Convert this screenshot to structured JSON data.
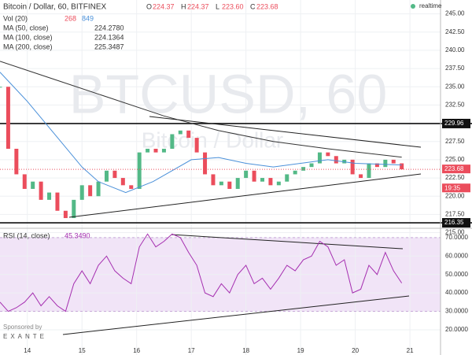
{
  "chart_data": {
    "type": "candlestick",
    "header": {
      "title": "Bitcoin / Dollar, 60, BITFINEX",
      "ohlc": [
        "O",
        "224.37",
        "H",
        "224.37",
        "L",
        "223.60",
        "C",
        "223.68"
      ],
      "status": "realtime"
    },
    "indicators": [
      {
        "name": "Vol (20)",
        "values": [
          "268",
          "849"
        ]
      },
      {
        "name": "MA (50, close)",
        "values": [
          "224.2780"
        ]
      },
      {
        "name": "MA (100, close)",
        "values": [
          "224.1364"
        ]
      },
      {
        "name": "MA (200, close)",
        "values": [
          "225.3487"
        ]
      }
    ],
    "watermark": [
      "BTCUSD, 60",
      "Bitcoin / Dollar"
    ],
    "sponsor": [
      "Sponsored by",
      "EXANTE"
    ],
    "xlim": [
      13.5,
      21.56
    ],
    "xticks": [
      14,
      15,
      16,
      17,
      18,
      19,
      20,
      21
    ],
    "ylim": [
      215.6,
      246.9
    ],
    "yticks": [
      {
        "value": 245,
        "label": "245.00"
      },
      {
        "value": 242.5,
        "label": "242.50"
      },
      {
        "value": 240,
        "label": "240.00"
      },
      {
        "value": 237.5,
        "label": "237.50"
      },
      {
        "value": 235,
        "label": "235.00"
      },
      {
        "value": 232.5,
        "label": "232.50"
      },
      {
        "value": 230,
        "label": "230.00"
      },
      {
        "value": 227.5,
        "label": "227.50"
      },
      {
        "value": 225,
        "label": "225.00"
      },
      {
        "value": 222.5,
        "label": "222.50"
      },
      {
        "value": 220,
        "label": "220.00"
      },
      {
        "value": 217.5,
        "label": "217.50"
      },
      {
        "value": 215,
        "label": "215.00"
      }
    ],
    "x": [
      13.5,
      13.65,
      13.8,
      13.95,
      14.1,
      14.25,
      14.4,
      14.55,
      14.7,
      14.85,
      15.0,
      15.15,
      15.3,
      15.45,
      15.6,
      15.75,
      15.9,
      16.05,
      16.2,
      16.35,
      16.5,
      16.65,
      16.8,
      16.95,
      17.1,
      17.25,
      17.4,
      17.55,
      17.7,
      17.85,
      18.0,
      18.15,
      18.3,
      18.45,
      18.6,
      18.75,
      18.9,
      19.05,
      19.2,
      19.35,
      19.5,
      19.65,
      19.8,
      19.95,
      20.1,
      20.25,
      20.4,
      20.55,
      20.7,
      20.85
    ],
    "close": [
      235.0,
      226.5,
      223.0,
      221.0,
      222.0,
      219.5,
      220.5,
      218.0,
      217.0,
      219.5,
      221.5,
      220.0,
      222.0,
      223.5,
      222.5,
      221.5,
      221.0,
      226.0,
      226.5,
      226.0,
      226.5,
      228.5,
      229.0,
      228.0,
      226.0,
      223.0,
      221.5,
      222.0,
      221.0,
      222.5,
      223.5,
      222.0,
      222.5,
      221.5,
      222.0,
      223.0,
      223.5,
      224.0,
      224.5,
      226.0,
      225.5,
      224.5,
      225.0,
      223.0,
      222.5,
      224.5,
      224.0,
      225.0,
      224.5,
      223.68
    ],
    "up_color": "#53b987",
    "down_color": "#eb4d5c",
    "lines": [
      {
        "name": "MA (50, close)",
        "color": "#4a90d9",
        "x": [
          13.5,
          14.0,
          14.5,
          15.0,
          15.3,
          15.8,
          16.3,
          17.0,
          17.5,
          18.0,
          18.5,
          19.0,
          19.5,
          20.0,
          20.85
        ],
        "values": [
          237.0,
          233.0,
          228.5,
          224.0,
          222.0,
          220.5,
          222.0,
          225.0,
          225.3,
          224.5,
          224.0,
          224.5,
          225.0,
          224.5,
          224.278
        ]
      },
      {
        "name": "MA (200, close)",
        "color": "#333333",
        "x": [
          13.5,
          14.5,
          15.5,
          16.5,
          17.5,
          18.5,
          19.5,
          20.85
        ],
        "values": [
          238.5,
          236.0,
          233.5,
          231.0,
          229.0,
          227.5,
          226.5,
          225.3487
        ]
      }
    ],
    "levels": [
      {
        "value": 229.96,
        "label": "229.96"
      },
      {
        "value": 216.35,
        "label": "216.35"
      }
    ],
    "price_labels": [
      {
        "value": 223.68,
        "label": "223.68",
        "color": "#eb4d5c"
      },
      {
        "value": 221.4,
        "label": "19:35",
        "color": "#eb4d5c"
      }
    ],
    "rsi": {
      "name": "RSI (14, close)",
      "value_label": "45.3490",
      "color": "#a52fb0",
      "ylim": [
        6.3,
        75.1
      ],
      "yticks": [
        {
          "value": 70,
          "label": "70.0000"
        },
        {
          "value": 60,
          "label": "60.0000"
        },
        {
          "value": 50,
          "label": "50.0000"
        },
        {
          "value": 40,
          "label": "40.0000"
        },
        {
          "value": 30,
          "label": "30.0000"
        },
        {
          "value": 20,
          "label": "20.0000"
        }
      ],
      "band": [
        30,
        70
      ],
      "values": [
        35,
        30,
        32,
        35,
        40,
        33,
        38,
        33,
        30,
        45,
        52,
        45,
        55,
        60,
        52,
        48,
        45,
        65,
        72,
        65,
        68,
        72,
        70,
        62,
        55,
        40,
        38,
        45,
        40,
        50,
        55,
        45,
        48,
        42,
        48,
        55,
        52,
        58,
        60,
        68,
        65,
        55,
        58,
        40,
        42,
        55,
        50,
        62,
        52,
        45.349
      ]
    }
  }
}
